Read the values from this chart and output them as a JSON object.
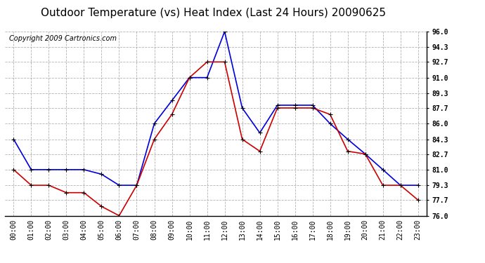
{
  "title": "Outdoor Temperature (vs) Heat Index (Last 24 Hours) 20090625",
  "copyright": "Copyright 2009 Cartronics.com",
  "hours": [
    "00:00",
    "01:00",
    "02:00",
    "03:00",
    "04:00",
    "05:00",
    "06:00",
    "07:00",
    "08:00",
    "09:00",
    "10:00",
    "11:00",
    "12:00",
    "13:00",
    "14:00",
    "15:00",
    "16:00",
    "17:00",
    "18:00",
    "19:00",
    "20:00",
    "21:00",
    "22:00",
    "23:00"
  ],
  "temp": [
    84.3,
    81.0,
    81.0,
    81.0,
    81.0,
    80.5,
    79.3,
    79.3,
    86.0,
    88.5,
    91.0,
    91.0,
    96.0,
    87.7,
    85.0,
    88.0,
    88.0,
    88.0,
    86.0,
    84.3,
    82.7,
    81.0,
    79.3,
    79.3
  ],
  "heat_index": [
    81.0,
    79.3,
    79.3,
    78.5,
    78.5,
    77.0,
    76.0,
    79.3,
    84.3,
    87.0,
    91.0,
    92.7,
    92.7,
    84.3,
    83.0,
    87.7,
    87.7,
    87.7,
    87.0,
    83.0,
    82.7,
    79.3,
    79.3,
    77.7
  ],
  "temp_color": "#0000dd",
  "heat_index_color": "#cc0000",
  "bg_color": "#ffffff",
  "plot_bg_color": "#ffffff",
  "grid_color": "#aaaaaa",
  "ylim_min": 76.0,
  "ylim_max": 96.0,
  "yticks": [
    76.0,
    77.7,
    79.3,
    81.0,
    82.7,
    84.3,
    86.0,
    87.7,
    89.3,
    91.0,
    92.7,
    94.3,
    96.0
  ],
  "title_fontsize": 11,
  "copyright_fontsize": 7,
  "tick_fontsize": 7,
  "ylabel_fontsize": 7,
  "marker": "+"
}
